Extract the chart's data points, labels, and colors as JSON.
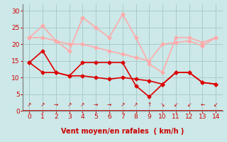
{
  "title": "",
  "xlabel": "Vent moyen/en rafales  ( km/h )",
  "ylabel": "",
  "bg_color": "#cce8e8",
  "grid_color": "#aacccc",
  "ylim": [
    0,
    32
  ],
  "xlim": [
    -0.5,
    14.5
  ],
  "yticks": [
    0,
    5,
    10,
    15,
    20,
    25,
    30
  ],
  "xticks": [
    0,
    1,
    2,
    3,
    4,
    5,
    6,
    7,
    8,
    9,
    10,
    11,
    12,
    13,
    14
  ],
  "series": [
    {
      "x": [
        0,
        1,
        2,
        3,
        4,
        5,
        6,
        7,
        8,
        9,
        10,
        11,
        12,
        13,
        14
      ],
      "y": [
        22,
        25.5,
        21,
        18,
        28,
        25,
        22,
        29,
        22,
        14,
        11.5,
        22,
        22,
        20.5,
        22
      ],
      "color": "#ffaaaa",
      "linewidth": 1.2,
      "marker": "D",
      "markersize": 2.5
    },
    {
      "x": [
        0,
        1,
        2,
        3,
        4,
        5,
        6,
        7,
        8,
        9,
        10,
        11,
        12,
        13,
        14
      ],
      "y": [
        22,
        22,
        21,
        20,
        20,
        19,
        18,
        17,
        16,
        15,
        20,
        20.5,
        21,
        19.5,
        22
      ],
      "color": "#ffaaaa",
      "linewidth": 1.2,
      "marker": "D",
      "markersize": 2.5
    },
    {
      "x": [
        0,
        1,
        2,
        3,
        4,
        5,
        6,
        7,
        8,
        9,
        10,
        11,
        12,
        13,
        14
      ],
      "y": [
        14.5,
        18,
        11.5,
        10.5,
        14.5,
        14.5,
        14.5,
        14.5,
        7.5,
        4.2,
        8,
        11.5,
        11.5,
        8.5,
        8
      ],
      "color": "#dd0000",
      "linewidth": 1.2,
      "marker": "D",
      "markersize": 2.5
    },
    {
      "x": [
        0,
        1,
        2,
        3,
        4,
        5,
        6,
        7,
        8,
        9,
        10,
        11,
        12,
        13,
        14
      ],
      "y": [
        14.5,
        11.5,
        11.5,
        10.5,
        10.5,
        10,
        9.5,
        10,
        9.5,
        9.0,
        8,
        11.5,
        11.5,
        8.5,
        8
      ],
      "color": "#dd0000",
      "linewidth": 1.2,
      "marker": "D",
      "markersize": 2.5
    }
  ],
  "arrow_labels": [
    "↗",
    "↗",
    "→",
    "↗",
    "↗",
    "→",
    "→",
    "↗",
    "↗",
    "↑",
    "↘",
    "↙",
    "↙",
    "←",
    "↙"
  ],
  "tick_color": "#cc0000",
  "label_color": "#cc0000",
  "axis_color": "#cc0000",
  "spine_color": "#888888"
}
